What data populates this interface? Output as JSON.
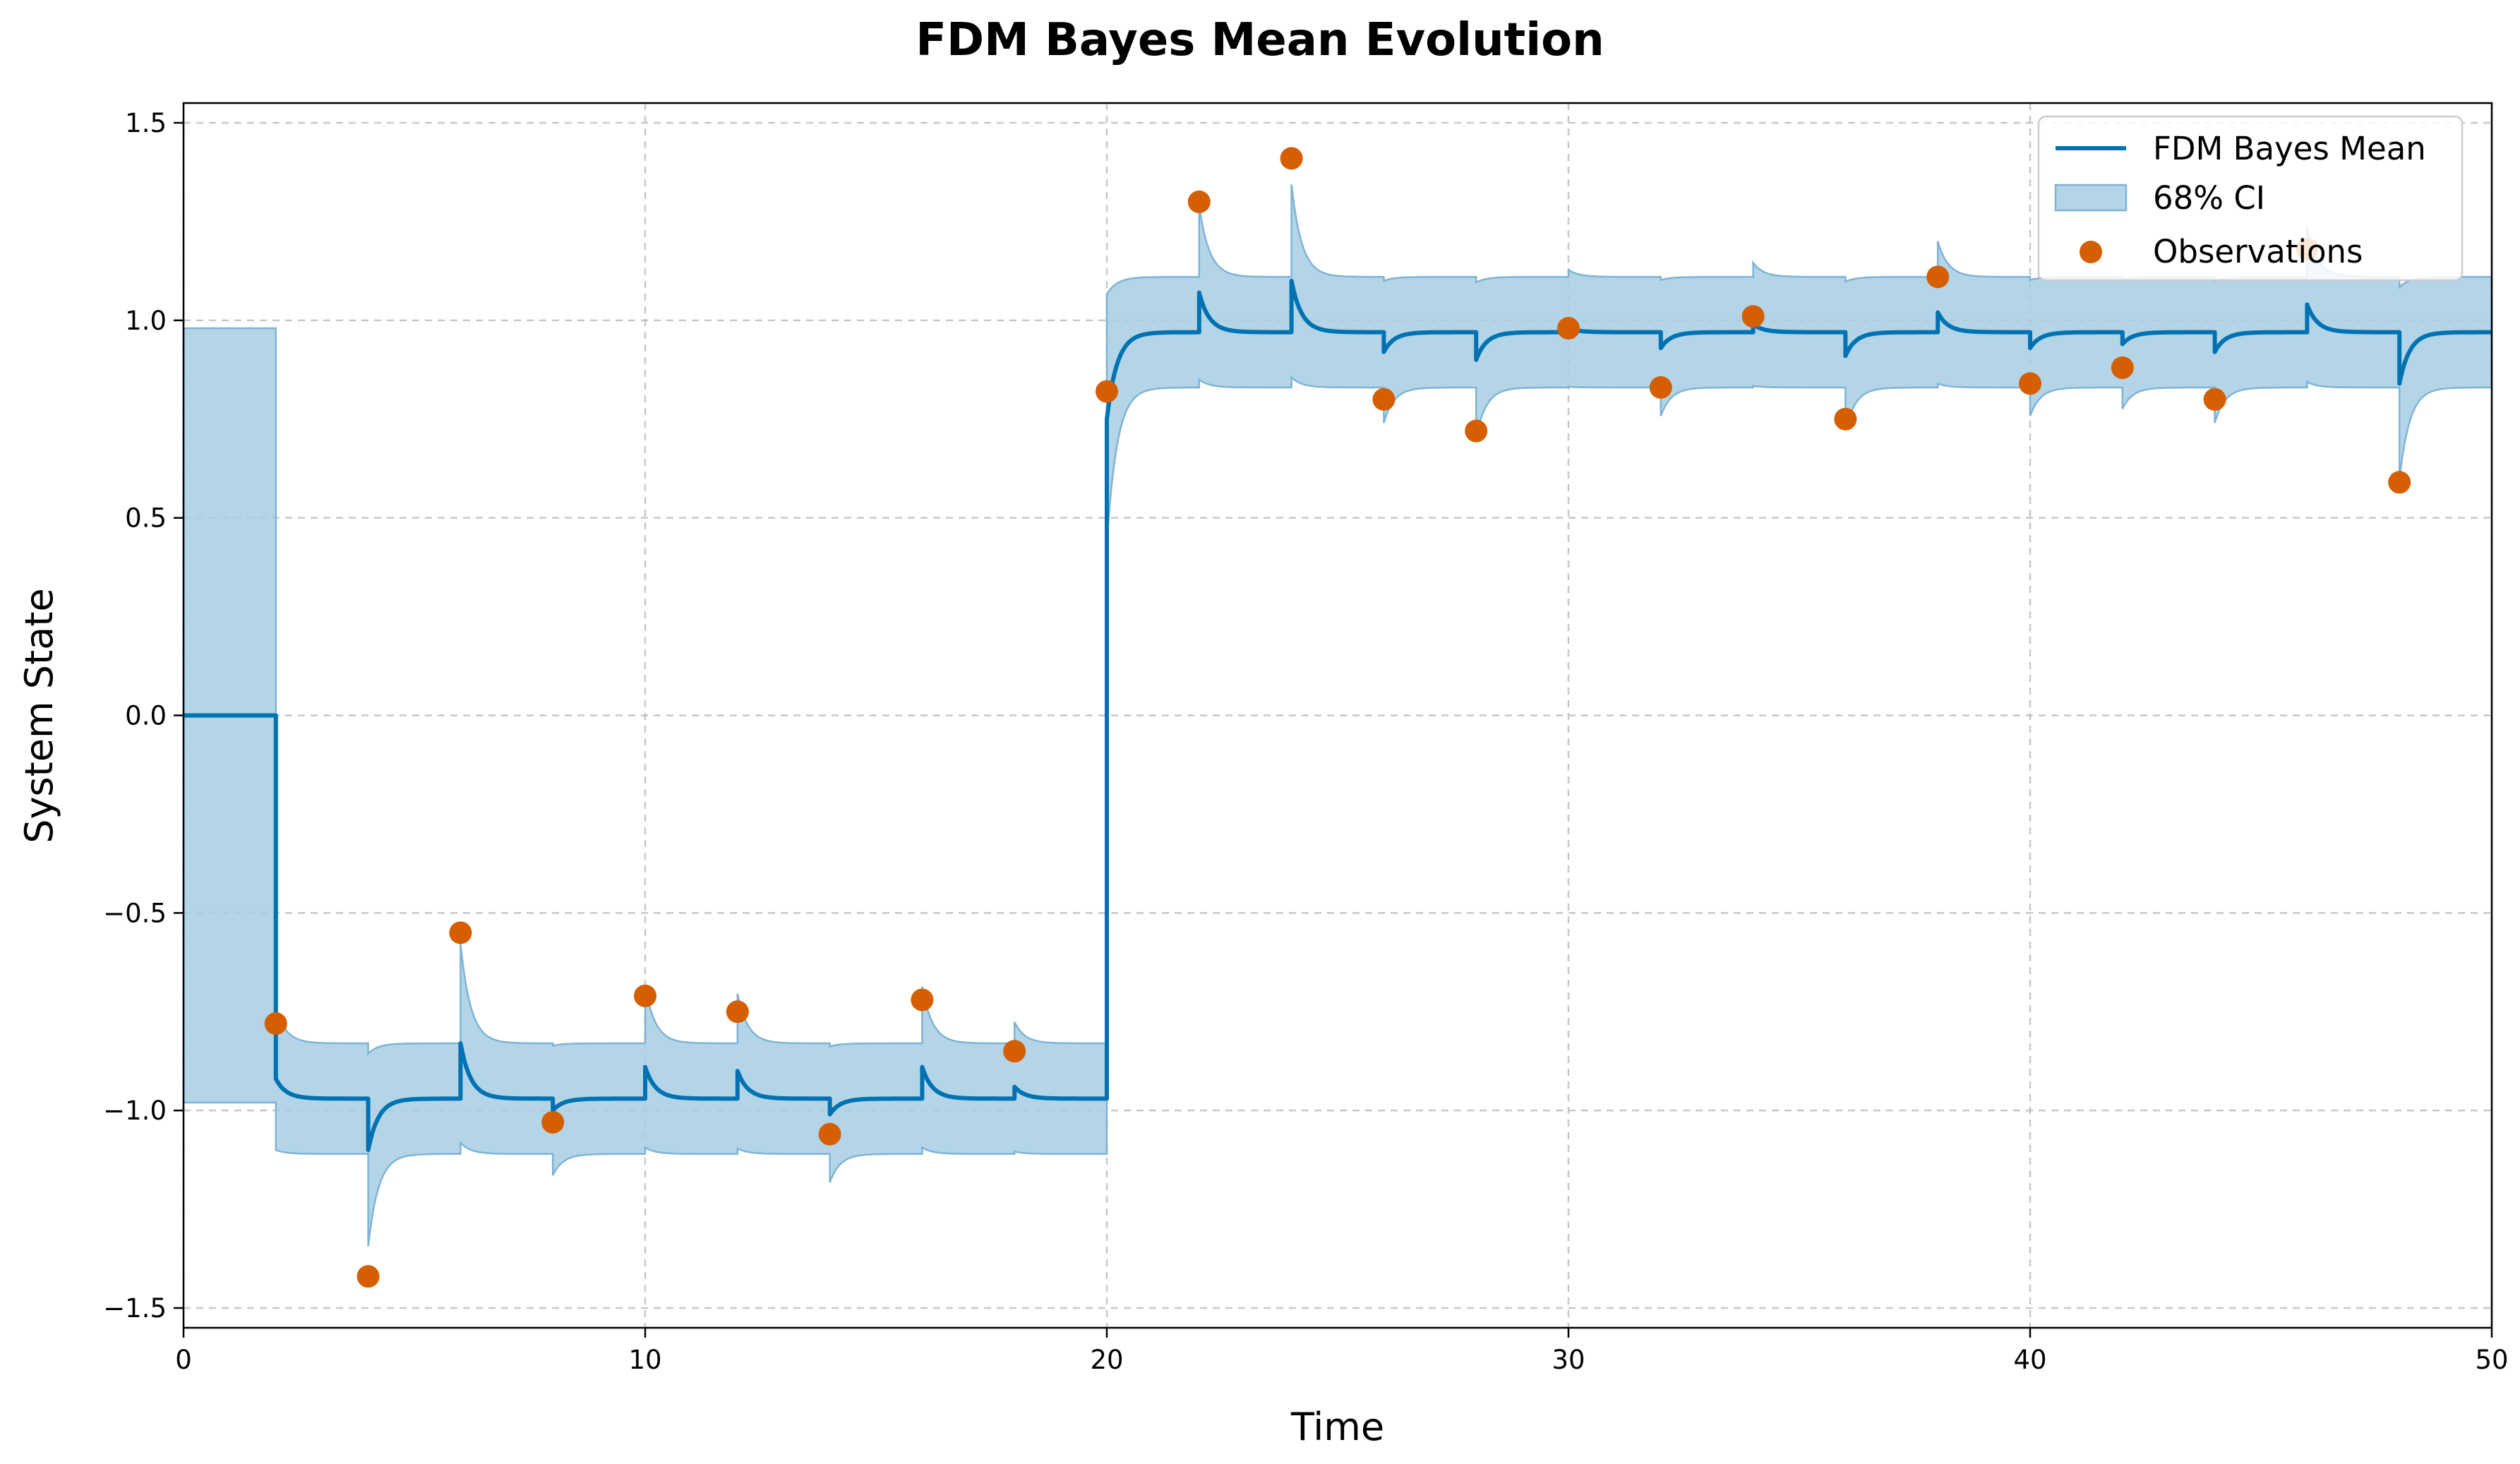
{
  "chart_data": {
    "type": "line",
    "title": "FDM Bayes Mean Evolution",
    "xlabel": "Time",
    "ylabel": "System State",
    "xlim": [
      0,
      50
    ],
    "ylim": [
      -1.55,
      1.55
    ],
    "xticks": [
      0,
      10,
      20,
      30,
      40,
      50
    ],
    "yticks": [
      -1.5,
      -1.0,
      -0.5,
      0.0,
      0.5,
      1.0,
      1.5
    ],
    "xtick_labels": [
      "0",
      "10",
      "20",
      "30",
      "40",
      "50"
    ],
    "ytick_labels": [
      "−1.5",
      "−1.0",
      "−0.5",
      "0.0",
      "0.5",
      "1.0",
      "1.5"
    ],
    "grid": true,
    "legend_position": "upper-right",
    "legend": [
      "FDM Bayes Mean",
      "68% CI",
      "Observations"
    ],
    "colors": {
      "mean_line": "#0072B2",
      "ci_fill": "#a6cee3",
      "ci_edge": "#7fb3d5",
      "observations": "#D55E00"
    },
    "initial_state": {
      "t_end": 2,
      "mean": 0.0,
      "ci_lower": -0.98,
      "ci_upper": 0.98
    },
    "steady_ci_halfwidth": 0.14,
    "observations": {
      "x": [
        2,
        4,
        6,
        8,
        10,
        12,
        14,
        16,
        18,
        20,
        22,
        24,
        26,
        28,
        30,
        32,
        34,
        36,
        38,
        40,
        42,
        44,
        46,
        48
      ],
      "y": [
        -0.78,
        -1.42,
        -0.55,
        -1.03,
        -0.71,
        -0.75,
        -1.06,
        -0.72,
        -0.85,
        0.82,
        1.3,
        1.41,
        0.8,
        0.72,
        0.98,
        0.83,
        1.01,
        0.75,
        1.11,
        0.84,
        0.88,
        0.8,
        1.18,
        0.59
      ]
    },
    "mean_segments": [
      {
        "t": 2,
        "level": -0.97,
        "peak": -0.92
      },
      {
        "t": 4,
        "level": -0.97,
        "peak": -1.1
      },
      {
        "t": 6,
        "level": -0.97,
        "peak": -0.83
      },
      {
        "t": 8,
        "level": -0.97,
        "peak": -1.0
      },
      {
        "t": 10,
        "level": -0.97,
        "peak": -0.89
      },
      {
        "t": 12,
        "level": -0.97,
        "peak": -0.9
      },
      {
        "t": 14,
        "level": -0.97,
        "peak": -1.01
      },
      {
        "t": 16,
        "level": -0.97,
        "peak": -0.89
      },
      {
        "t": 18,
        "level": -0.97,
        "peak": -0.94
      },
      {
        "t": 20,
        "level": 0.97,
        "peak": 0.75
      },
      {
        "t": 22,
        "level": 0.97,
        "peak": 1.07
      },
      {
        "t": 24,
        "level": 0.97,
        "peak": 1.1
      },
      {
        "t": 26,
        "level": 0.97,
        "peak": 0.92
      },
      {
        "t": 28,
        "level": 0.97,
        "peak": 0.9
      },
      {
        "t": 30,
        "level": 0.97,
        "peak": 0.98
      },
      {
        "t": 32,
        "level": 0.97,
        "peak": 0.93
      },
      {
        "t": 34,
        "level": 0.97,
        "peak": 0.99
      },
      {
        "t": 36,
        "level": 0.97,
        "peak": 0.91
      },
      {
        "t": 38,
        "level": 0.97,
        "peak": 1.02
      },
      {
        "t": 40,
        "level": 0.97,
        "peak": 0.93
      },
      {
        "t": 42,
        "level": 0.97,
        "peak": 0.94
      },
      {
        "t": 44,
        "level": 0.97,
        "peak": 0.92
      },
      {
        "t": 46,
        "level": 0.97,
        "peak": 1.04
      },
      {
        "t": 48,
        "level": 0.97,
        "peak": 0.84
      }
    ]
  }
}
